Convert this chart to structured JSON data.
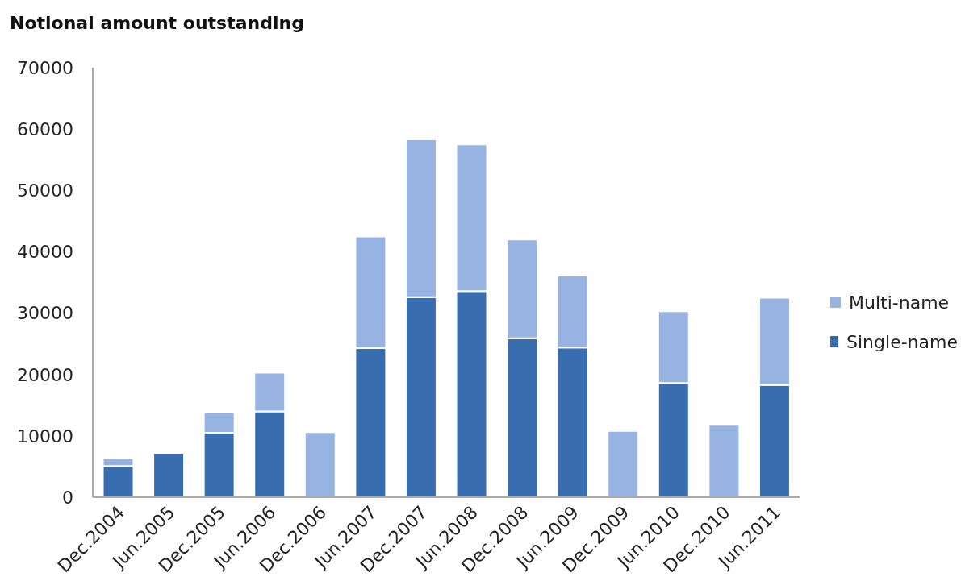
{
  "chart_data": {
    "type": "bar",
    "title": "Notional amount outstanding",
    "categories": [
      "Dec.2004",
      "Jun.2005",
      "Dec.2005",
      "Jun.2006",
      "Dec.2006",
      "Jun.2007",
      "Dec.2007",
      "Jun.2008",
      "Dec.2008",
      "Jun.2009",
      "Dec.2009",
      "Jun.2010",
      "Dec.2010",
      "Jun.2011"
    ],
    "series": [
      {
        "name": "Single-name",
        "color": "#386db0",
        "values": [
          5100,
          7200,
          10500,
          14000,
          null,
          24300,
          32600,
          33600,
          25900,
          24400,
          null,
          18600,
          null,
          18300
        ]
      },
      {
        "name": "Multi-name",
        "color": "#97b3e1",
        "values": [
          1200,
          null,
          3400,
          6300,
          10600,
          18200,
          25700,
          23900,
          16100,
          11700,
          10800,
          11700,
          11800,
          14200
        ]
      }
    ],
    "stacked": true,
    "ylim": [
      0,
      70000
    ],
    "yticks": [
      0,
      10000,
      20000,
      30000,
      40000,
      50000,
      60000,
      70000
    ],
    "legend": "right"
  }
}
